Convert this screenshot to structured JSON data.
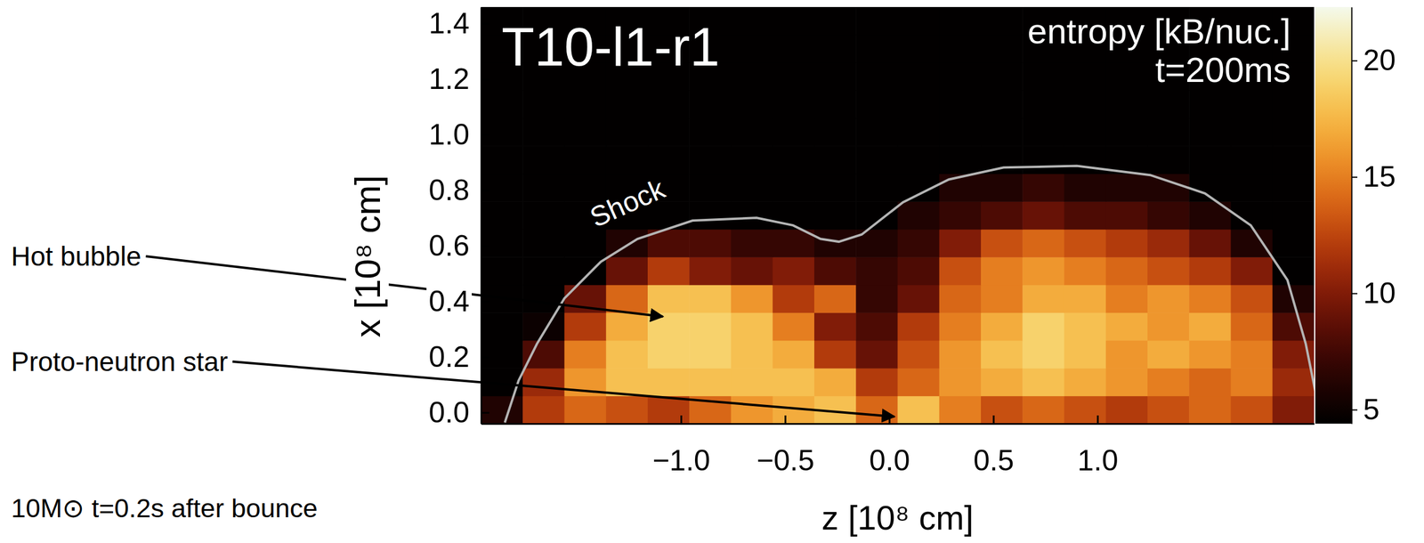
{
  "chart_data": {
    "type": "heatmap",
    "title": "T10-l1-r1",
    "time_label": "t=200ms",
    "x_label": "z [10⁸ cm]",
    "y_label": "x [10⁸ cm]",
    "caption": "10M⊙ t=0.2s after bounce",
    "annotations": [
      {
        "text": "Hot bubble"
      },
      {
        "text": "Proto-neutron star"
      }
    ],
    "xlim": [
      -1.96,
      2.04
    ],
    "ylim": [
      -0.04,
      1.46
    ],
    "xticks": [
      {
        "value": -1.0,
        "label": "−1.0"
      },
      {
        "value": -0.5,
        "label": "−0.5"
      },
      {
        "value": 0,
        "label": "0.0"
      },
      0.5,
      {
        "value": 1.0,
        "label": "1.0"
      }
    ],
    "yticks": [
      {
        "value": 0,
        "label": "0.0"
      },
      0.2,
      0.4,
      0.6,
      0.8,
      {
        "value": 1.0,
        "label": "1.0"
      },
      1.2,
      1.4
    ],
    "x_edges": [
      -1.96,
      -1.76,
      -1.56,
      -1.36,
      -1.16,
      -0.96,
      -0.76,
      -0.56,
      -0.36,
      -0.16,
      0.04,
      0.24,
      0.44,
      0.64,
      0.84,
      1.04,
      1.24,
      1.44,
      1.64,
      1.84,
      2.04
    ],
    "y_edges": [
      -0.04,
      0.06,
      0.16,
      0.26,
      0.36,
      0.46,
      0.56,
      0.66,
      0.76,
      0.86,
      0.96,
      1.06,
      1.16,
      1.26,
      1.36,
      1.46
    ],
    "cells": [
      [
        6,
        12,
        14,
        13,
        12,
        14,
        16,
        17,
        18,
        14,
        18,
        15,
        13,
        14,
        13,
        12,
        13,
        14,
        13,
        10
      ],
      [
        4.5,
        11,
        16,
        18,
        18,
        18,
        18,
        18,
        17,
        12,
        14,
        16,
        17,
        18,
        17,
        16,
        15,
        14,
        15,
        11
      ],
      [
        4.5,
        8,
        15,
        18,
        19,
        19,
        18,
        17,
        12,
        9,
        13,
        16,
        18,
        19,
        18,
        16,
        17,
        16,
        15,
        10
      ],
      [
        4.5,
        5,
        12,
        17,
        19,
        19,
        18,
        15,
        10,
        8,
        12,
        15,
        17,
        19,
        18,
        17,
        16,
        17,
        14,
        8
      ],
      [
        4.5,
        4.5,
        9,
        14,
        18,
        18,
        16,
        12,
        14,
        7,
        9,
        14,
        15,
        17,
        17,
        15,
        16,
        15,
        13,
        6
      ],
      [
        4.5,
        4.5,
        4.5,
        9,
        12,
        10,
        9,
        10,
        8,
        7,
        8,
        13,
        15,
        16,
        15,
        14,
        13,
        12,
        10,
        4.5
      ],
      [
        4.5,
        4.5,
        4.5,
        6,
        8,
        8,
        7,
        7,
        6,
        6,
        7,
        10,
        13,
        14,
        13,
        12,
        11,
        9,
        6,
        4.5
      ],
      [
        4.5,
        4.5,
        4.5,
        4.5,
        4.5,
        4.5,
        4.5,
        4.5,
        4.5,
        4.5,
        6,
        7,
        8,
        9,
        8,
        8,
        7,
        6,
        4.5,
        4.5
      ],
      [
        4.5,
        4.5,
        4.5,
        4.5,
        4.5,
        4.5,
        4.5,
        4.5,
        4.5,
        4.5,
        4.5,
        6,
        6,
        7,
        6,
        6,
        6,
        4.5,
        4.5,
        4.5
      ],
      [
        4.5,
        4.5,
        4.5,
        4.5,
        4.5,
        4.5,
        4.5,
        4.5,
        4.5,
        4.5,
        4.5,
        4.5,
        4.5,
        4.5,
        4.5,
        4.5,
        4.5,
        4.5,
        4.5,
        4.5
      ],
      [
        4.5,
        4.5,
        4.5,
        4.5,
        4.5,
        4.5,
        4.5,
        4.5,
        4.5,
        4.5,
        4.5,
        4.5,
        4.5,
        4.5,
        4.5,
        4.5,
        4.5,
        4.5,
        4.5,
        4.5
      ],
      [
        4.5,
        4.5,
        4.5,
        4.5,
        4.5,
        4.5,
        4.5,
        4.5,
        4.5,
        4.5,
        4.5,
        4.5,
        4.5,
        4.5,
        4.5,
        4.5,
        4.5,
        4.5,
        4.5,
        4.5
      ],
      [
        4.5,
        4.5,
        4.5,
        4.5,
        4.5,
        4.5,
        4.5,
        4.5,
        4.5,
        4.5,
        4.5,
        4.5,
        4.5,
        4.5,
        4.5,
        4.5,
        4.5,
        4.5,
        4.5,
        4.5
      ],
      [
        4.5,
        4.5,
        4.5,
        4.5,
        4.5,
        4.5,
        4.5,
        4.5,
        4.5,
        4.5,
        4.5,
        4.5,
        4.5,
        4.5,
        4.5,
        4.5,
        4.5,
        4.5,
        4.5,
        4.5
      ],
      [
        4.5,
        4.5,
        4.5,
        4.5,
        4.5,
        4.5,
        4.5,
        4.5,
        4.5,
        4.5,
        4.5,
        4.5,
        4.5,
        4.5,
        4.5,
        4.5,
        4.5,
        4.5,
        4.5,
        4.5
      ]
    ],
    "colorbar": {
      "label": "entropy [kB/nuc.]",
      "range": [
        4.4,
        22.3
      ],
      "ticks": [
        5,
        10,
        15,
        20
      ]
    },
    "series": [
      {
        "name": "Shock",
        "color": "#b4b4b4",
        "type": "line",
        "x": [
          -1.846,
          -1.78,
          -1.692,
          -1.56,
          -1.385,
          -1.209,
          -0.945,
          -0.637,
          -0.462,
          -0.33,
          -0.242,
          -0.132,
          0.066,
          0.286,
          0.549,
          0.901,
          1.253,
          1.516,
          1.736,
          1.912,
          2.0,
          2.053,
          2.066
        ],
        "values": [
          -0.036,
          0.115,
          0.247,
          0.411,
          0.543,
          0.625,
          0.691,
          0.701,
          0.674,
          0.625,
          0.615,
          0.641,
          0.757,
          0.839,
          0.882,
          0.888,
          0.855,
          0.789,
          0.674,
          0.477,
          0.247,
          0.049,
          -0.036
        ]
      }
    ]
  }
}
